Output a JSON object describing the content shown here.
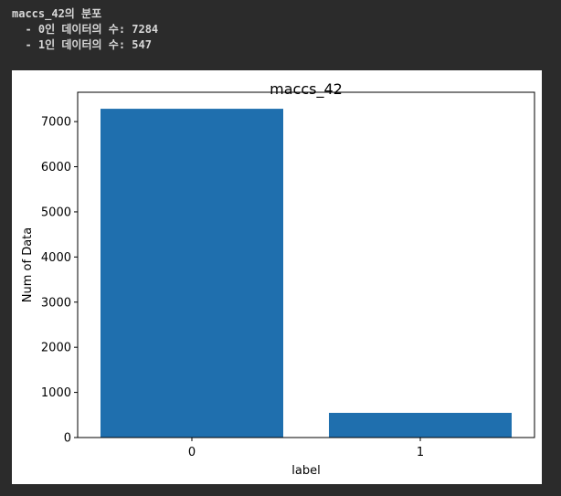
{
  "console": {
    "lines": [
      "maccs_42의 분포",
      "  - 0인 데이터의 수: 7284",
      "  - 1인 데이터의 수: 547"
    ]
  },
  "chart_data": {
    "type": "bar",
    "title": "maccs_42",
    "xlabel": "label",
    "ylabel": "Num of Data",
    "categories": [
      "0",
      "1"
    ],
    "values": [
      7284,
      547
    ],
    "bar_color": "#1f6fae",
    "ylim": [
      0,
      7650
    ],
    "yticks": [
      0,
      1000,
      2000,
      3000,
      4000,
      5000,
      6000,
      7000
    ],
    "grid": false,
    "legend": "none"
  }
}
